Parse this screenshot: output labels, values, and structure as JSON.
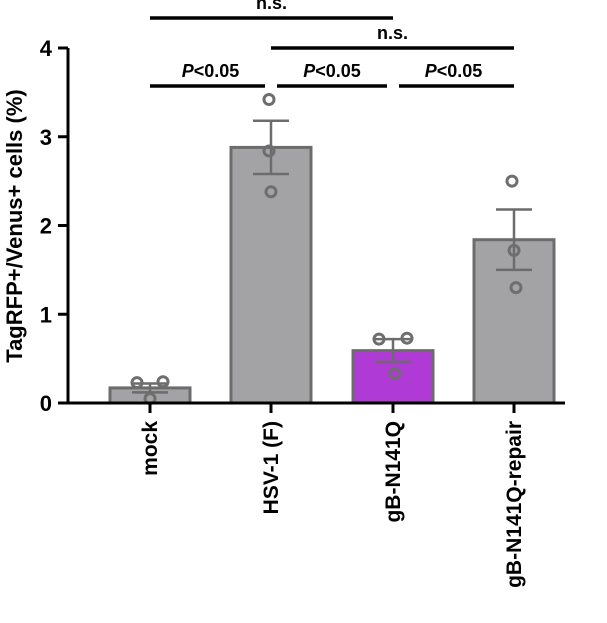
{
  "chart_data": {
    "type": "bar",
    "categories": [
      "mock",
      "HSV-1 (F)",
      "gB-N141Q",
      "gB-N141Q-repair"
    ],
    "values": [
      0.17,
      2.88,
      0.59,
      1.84
    ],
    "errors": [
      0.05,
      0.3,
      0.13,
      0.34
    ],
    "points": [
      [
        0.23,
        0.24,
        0.05
      ],
      [
        3.42,
        2.84,
        2.38
      ],
      [
        0.72,
        0.73,
        0.33
      ],
      [
        2.5,
        1.72,
        1.3
      ]
    ],
    "bar_colors": [
      "#a3a3a6",
      "#a3a3a6",
      "#b03ad6",
      "#a3a3a6"
    ],
    "edge_color": "#6c6c6c",
    "ylabel": "TagRFP+/Venus+ cells (%)",
    "xlabel": "",
    "ylim": [
      0,
      4
    ],
    "yticks": [
      0,
      1,
      2,
      3,
      4
    ],
    "significance": [
      {
        "from": 0,
        "to": 1,
        "p_prefix": "P",
        "p_rest": "<0.05",
        "level": 0
      },
      {
        "from": 1,
        "to": 2,
        "p_prefix": "P",
        "p_rest": "<0.05",
        "level": 0
      },
      {
        "from": 2,
        "to": 3,
        "p_prefix": "P",
        "p_rest": "<0.05",
        "level": 0
      },
      {
        "from": 1,
        "to": 3,
        "label": "n.s.",
        "level": 1
      },
      {
        "from": 0,
        "to": 2,
        "label": "n.s.",
        "level": 2
      }
    ]
  }
}
